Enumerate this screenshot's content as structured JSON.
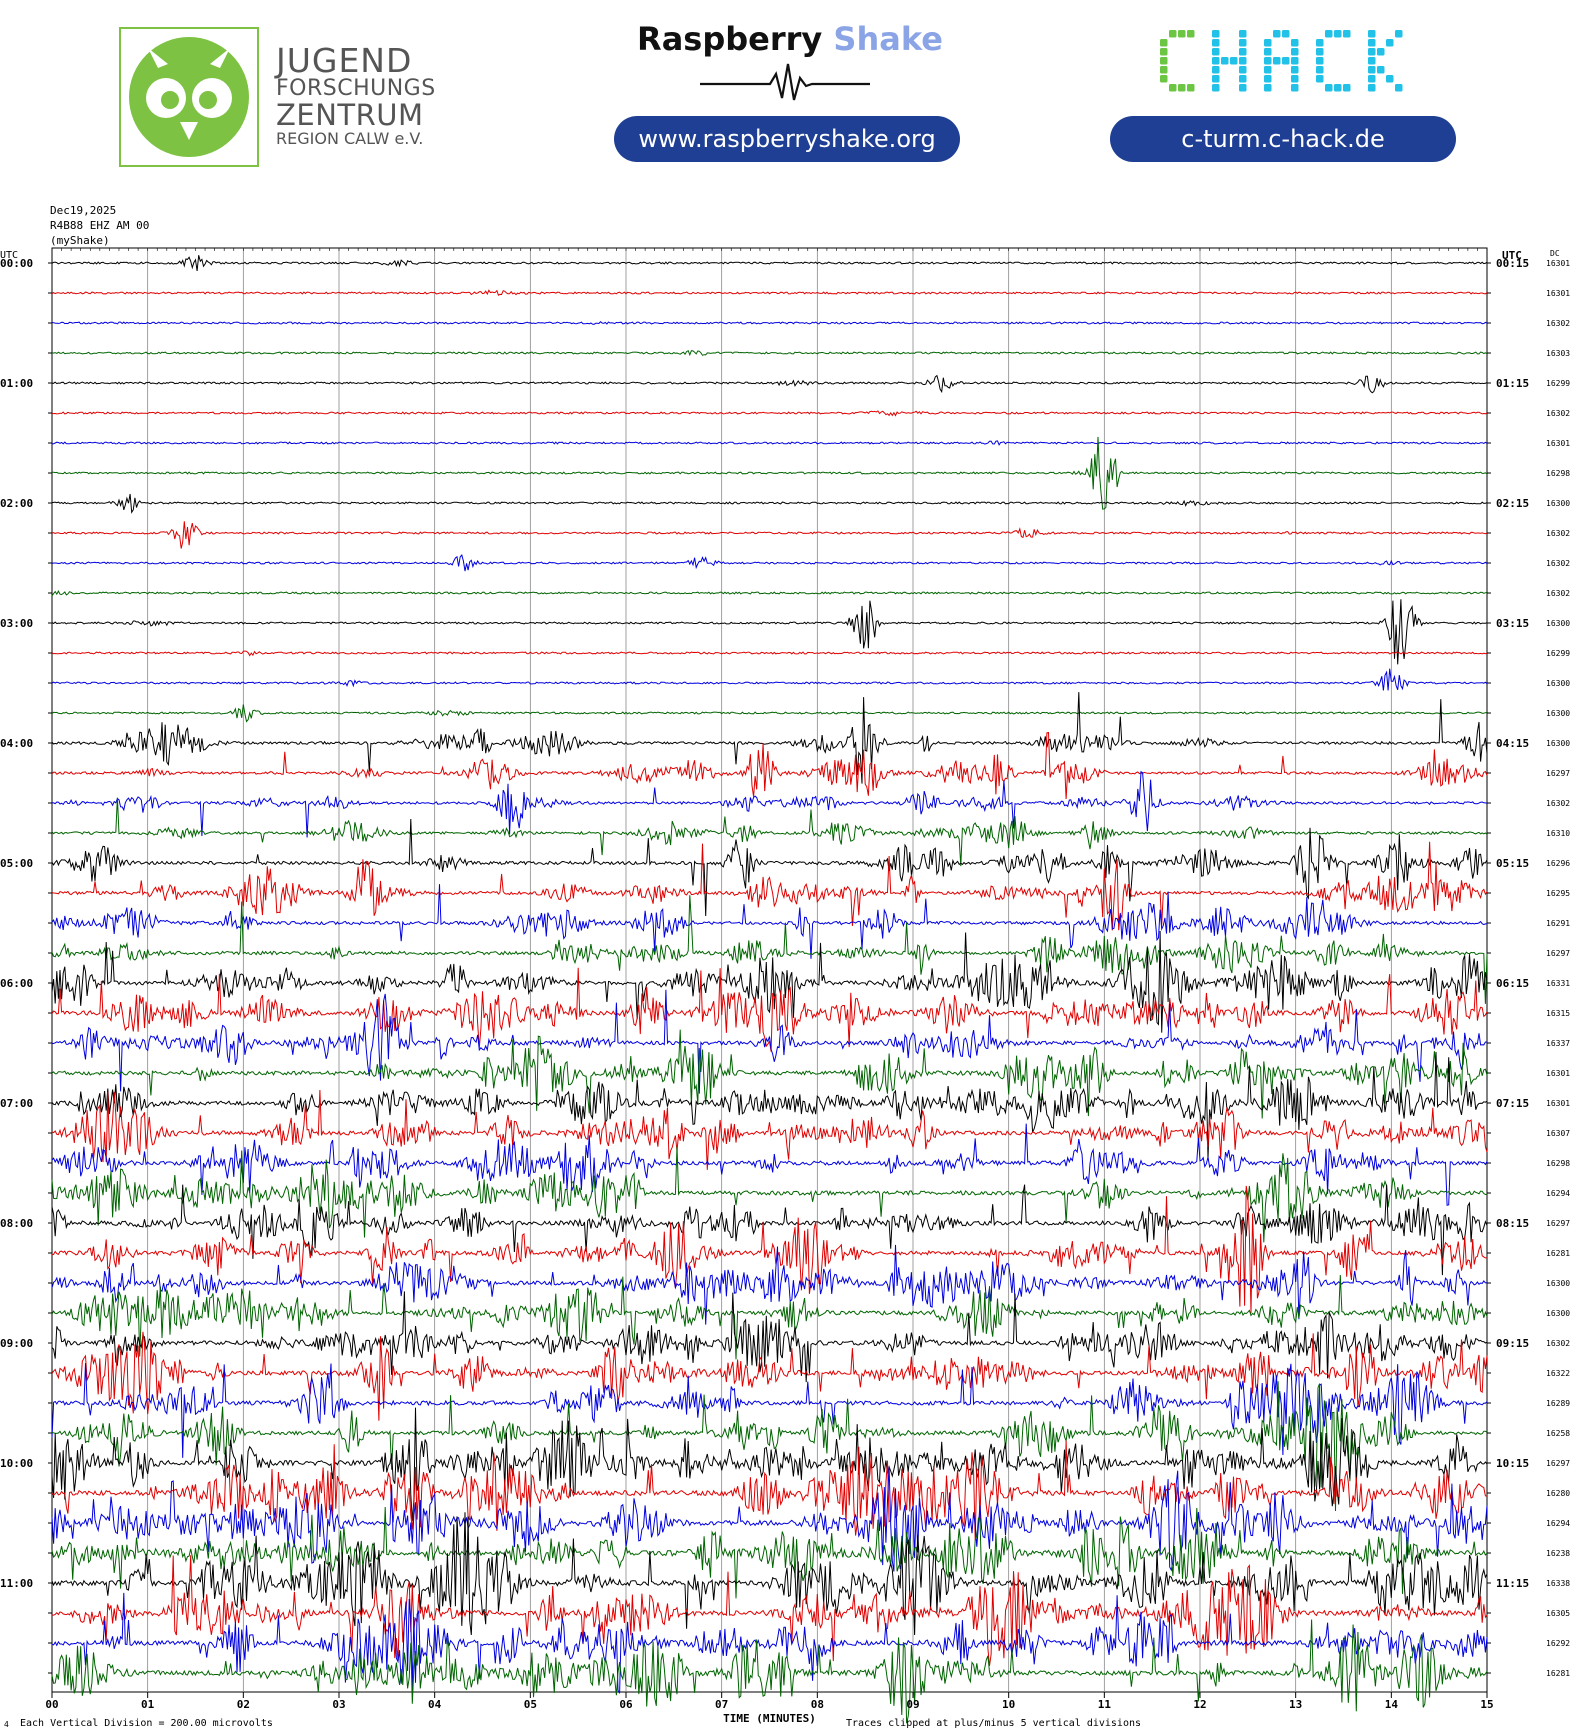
{
  "header": {
    "jfz": {
      "line1": "JUGEND",
      "line2": "FORSCHUNGS",
      "line3": "ZENTRUM",
      "line4": "REGION CALW e.V."
    },
    "raspberry": {
      "title_a": "Raspberry",
      "title_b": "Shake",
      "url": "www.raspberryshake.org"
    },
    "chack": {
      "logo": "CHACK",
      "url": "c-turm.c-hack.de"
    }
  },
  "colors": {
    "accent": "#1e3f94",
    "owl_green": "#7dc242",
    "chack_green": "#6cc644",
    "chack_cyan": "#22c1e8",
    "rs_light": "#8aa4e6"
  },
  "chart_data": {
    "type": "line",
    "title_date": "Dec19,2025",
    "station": "R4B88 EHZ AM 00",
    "network": "(myShake)",
    "left_axis_title": "UTC",
    "right_axis_title": "UTC",
    "dc_title": "DC",
    "xlabel": "TIME (MINUTES)",
    "x_ticks": [
      "00",
      "01",
      "02",
      "03",
      "04",
      "05",
      "06",
      "07",
      "08",
      "09",
      "10",
      "11",
      "12",
      "13",
      "14",
      "15"
    ],
    "xlim": [
      0,
      15
    ],
    "row_minutes": 15,
    "left_hour_labels": [
      "00:00",
      "01:00",
      "02:00",
      "03:00",
      "04:00",
      "05:00",
      "06:00",
      "07:00",
      "08:00",
      "09:00",
      "10:00",
      "11:00"
    ],
    "right_hour_labels": [
      "00:15",
      "01:15",
      "02:15",
      "03:15",
      "04:15",
      "05:15",
      "06:15",
      "07:15",
      "08:15",
      "09:15",
      "10:15",
      "11:15"
    ],
    "trace_colors": [
      "#000000",
      "#e00000",
      "#0000e0",
      "#006400"
    ],
    "dc_offsets": [
      16301,
      16301,
      16302,
      16303,
      16299,
      16302,
      16301,
      16298,
      16300,
      16302,
      16302,
      16302,
      16300,
      16299,
      16300,
      16300,
      16300,
      16297,
      16302,
      16310,
      16296,
      16295,
      16291,
      16297,
      16331,
      16315,
      16337,
      16301,
      16301,
      16307,
      16298,
      16294,
      16297,
      16281,
      16300,
      16300,
      16302,
      16322,
      16289,
      16258,
      16297,
      16280,
      16294,
      16238,
      16338,
      16305,
      16292,
      16281
    ],
    "activity_level_per_row": [
      1,
      1,
      1,
      1,
      1,
      1,
      1,
      1,
      1,
      1,
      1,
      1,
      1,
      1,
      1,
      1,
      2,
      2,
      2,
      2,
      3,
      3,
      3,
      3,
      4,
      4,
      4,
      4,
      4,
      4,
      4,
      4,
      4,
      4,
      4,
      4,
      4,
      4,
      4,
      4,
      5,
      5,
      5,
      5,
      5,
      5,
      5,
      5
    ],
    "events": [
      {
        "row": 0,
        "minute": 1.5,
        "amplitude": 0.25
      },
      {
        "row": 4,
        "minute": 9.3,
        "amplitude": 0.3
      },
      {
        "row": 4,
        "minute": 13.8,
        "amplitude": 0.3
      },
      {
        "row": 7,
        "minute": 11.0,
        "amplitude": 1.6
      },
      {
        "row": 8,
        "minute": 0.8,
        "amplitude": 0.3
      },
      {
        "row": 9,
        "minute": 1.4,
        "amplitude": 0.6
      },
      {
        "row": 9,
        "minute": 10.2,
        "amplitude": 0.2
      },
      {
        "row": 10,
        "minute": 4.3,
        "amplitude": 0.25
      },
      {
        "row": 10,
        "minute": 6.8,
        "amplitude": 0.25
      },
      {
        "row": 12,
        "minute": 8.5,
        "amplitude": 1.0
      },
      {
        "row": 12,
        "minute": 14.1,
        "amplitude": 1.6
      },
      {
        "row": 14,
        "minute": 14.0,
        "amplitude": 0.5
      },
      {
        "row": 15,
        "minute": 2.0,
        "amplitude": 0.3
      },
      {
        "row": 16,
        "minute": 8.5,
        "amplitude": 1.7
      },
      {
        "row": 16,
        "minute": 14.9,
        "amplitude": 0.8
      },
      {
        "row": 17,
        "minute": 7.4,
        "amplitude": 1.3
      },
      {
        "row": 17,
        "minute": 9.9,
        "amplitude": 0.7
      },
      {
        "row": 18,
        "minute": 4.8,
        "amplitude": 1.2
      },
      {
        "row": 18,
        "minute": 11.4,
        "amplitude": 1.2
      },
      {
        "row": 20,
        "minute": 7.2,
        "amplitude": 1.0
      },
      {
        "row": 21,
        "minute": 3.3,
        "amplitude": 1.0
      },
      {
        "row": 21,
        "minute": 11.1,
        "amplitude": 1.2
      },
      {
        "row": 33,
        "minute": 12.5,
        "amplitude": 3.0
      },
      {
        "row": 33,
        "minute": 13.6,
        "amplitude": 1.2
      },
      {
        "row": 36,
        "minute": 13.3,
        "amplitude": 1.3
      },
      {
        "row": 37,
        "minute": 3.4,
        "amplitude": 1.5
      },
      {
        "row": 40,
        "minute": 3.8,
        "amplitude": 1.2
      },
      {
        "row": 44,
        "minute": 8.2,
        "amplitude": 1.5
      }
    ]
  },
  "footer": {
    "vertical_division": "Each Vertical Division =  200.00 microvolts",
    "clipping": "Traces clipped at plus/minus 5 vertical divisions",
    "corner_mark": "4"
  }
}
